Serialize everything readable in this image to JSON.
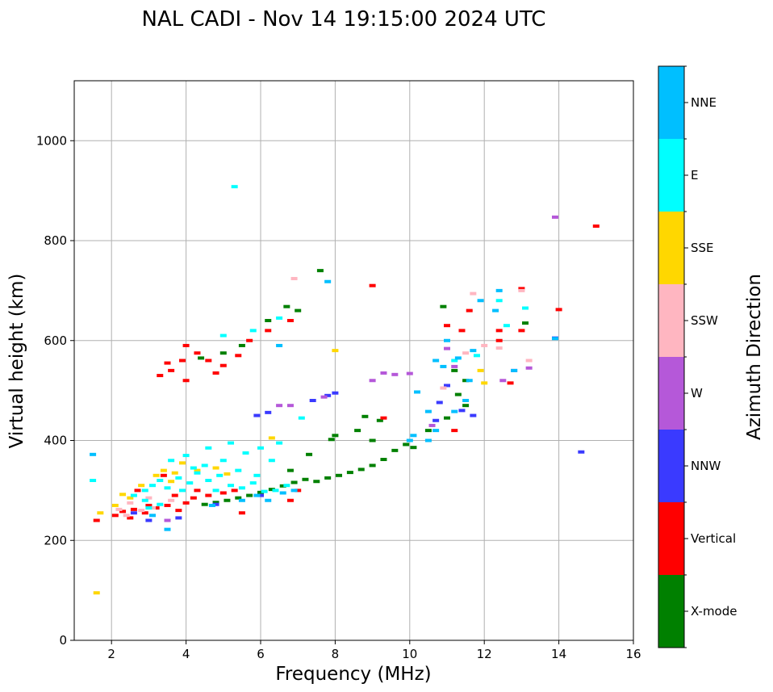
{
  "chart_data": {
    "type": "scatter",
    "title": "NAL CADI - Nov 14 19:15:00 2024 UTC",
    "xlabel": "Frequency (MHz)",
    "ylabel": "Virtual height (km)",
    "xlim": [
      1,
      16
    ],
    "ylim": [
      0,
      1120
    ],
    "xticks": [
      2,
      4,
      6,
      8,
      10,
      12,
      14,
      16
    ],
    "yticks": [
      0,
      200,
      400,
      600,
      800,
      1000
    ],
    "grid": true,
    "colorbar": {
      "label": "Azimuth Direction",
      "categories": [
        {
          "name": "X-mode",
          "color": "#008000"
        },
        {
          "name": "Vertical",
          "color": "#ff0000"
        },
        {
          "name": "NNW",
          "color": "#3a3aff"
        },
        {
          "name": "W",
          "color": "#b558d9"
        },
        {
          "name": "SSW",
          "color": "#ffb6c1"
        },
        {
          "name": "SSE",
          "color": "#ffd700"
        },
        {
          "name": "E",
          "color": "#00ffff"
        },
        {
          "name": "NNE",
          "color": "#00bfff"
        }
      ]
    },
    "series": [
      {
        "name": "X-mode",
        "points": [
          [
            4.5,
            272
          ],
          [
            4.8,
            276
          ],
          [
            5.1,
            280
          ],
          [
            5.4,
            285
          ],
          [
            5.7,
            290
          ],
          [
            6.0,
            296
          ],
          [
            6.3,
            302
          ],
          [
            6.6,
            309
          ],
          [
            6.9,
            316
          ],
          [
            7.2,
            322
          ],
          [
            7.5,
            318
          ],
          [
            7.8,
            325
          ],
          [
            8.1,
            330
          ],
          [
            8.4,
            336
          ],
          [
            8.7,
            342
          ],
          [
            9.0,
            350
          ],
          [
            9.3,
            362
          ],
          [
            9.6,
            380
          ],
          [
            9.9,
            392
          ],
          [
            10.1,
            386
          ],
          [
            10.5,
            420
          ],
          [
            11.0,
            445
          ],
          [
            11.5,
            470
          ],
          [
            9.0,
            400
          ],
          [
            8.0,
            410
          ],
          [
            8.6,
            420
          ],
          [
            8.8,
            448
          ],
          [
            9.2,
            440
          ],
          [
            7.6,
            740
          ],
          [
            6.2,
            640
          ],
          [
            6.7,
            668
          ],
          [
            7.0,
            660
          ],
          [
            5.5,
            590
          ],
          [
            5.0,
            575
          ],
          [
            4.4,
            565
          ],
          [
            11.2,
            540
          ],
          [
            11.5,
            520
          ],
          [
            13.1,
            635
          ],
          [
            10.9,
            668
          ],
          [
            11.3,
            492
          ],
          [
            7.3,
            372
          ],
          [
            6.8,
            340
          ],
          [
            7.9,
            402
          ]
        ]
      },
      {
        "name": "Vertical",
        "points": [
          [
            1.6,
            240
          ],
          [
            2.1,
            250
          ],
          [
            2.3,
            258
          ],
          [
            2.6,
            262
          ],
          [
            2.9,
            255
          ],
          [
            3.2,
            265
          ],
          [
            3.5,
            270
          ],
          [
            3.8,
            260
          ],
          [
            4.0,
            275
          ],
          [
            4.2,
            285
          ],
          [
            3.0,
            270
          ],
          [
            2.5,
            245
          ],
          [
            3.7,
            290
          ],
          [
            4.3,
            300
          ],
          [
            4.6,
            290
          ],
          [
            5.0,
            295
          ],
          [
            5.3,
            300
          ],
          [
            3.3,
            530
          ],
          [
            3.6,
            540
          ],
          [
            3.9,
            560
          ],
          [
            4.0,
            590
          ],
          [
            4.3,
            575
          ],
          [
            4.0,
            520
          ],
          [
            3.5,
            555
          ],
          [
            4.6,
            560
          ],
          [
            5.0,
            550
          ],
          [
            5.4,
            570
          ],
          [
            5.7,
            600
          ],
          [
            6.2,
            620
          ],
          [
            6.8,
            640
          ],
          [
            9.0,
            710
          ],
          [
            11.4,
            620
          ],
          [
            11.6,
            660
          ],
          [
            12.4,
            600
          ],
          [
            12.4,
            620
          ],
          [
            12.7,
            515
          ],
          [
            13.0,
            620
          ],
          [
            13.0,
            704
          ],
          [
            14.0,
            662
          ],
          [
            15.0,
            829
          ],
          [
            11.0,
            630
          ],
          [
            9.3,
            445
          ],
          [
            6.8,
            280
          ],
          [
            7.0,
            300
          ],
          [
            5.5,
            255
          ],
          [
            11.2,
            420
          ],
          [
            2.7,
            300
          ],
          [
            3.4,
            330
          ],
          [
            4.8,
            535
          ]
        ]
      },
      {
        "name": "NNW",
        "points": [
          [
            4.8,
            272
          ],
          [
            6.0,
            290
          ],
          [
            7.4,
            480
          ],
          [
            7.8,
            490
          ],
          [
            6.2,
            456
          ],
          [
            8.0,
            495
          ],
          [
            10.8,
            476
          ],
          [
            11.4,
            460
          ],
          [
            11.7,
            450
          ],
          [
            14.6,
            377
          ],
          [
            13.9,
            605
          ],
          [
            11.0,
            510
          ],
          [
            10.7,
            440
          ],
          [
            3.0,
            240
          ],
          [
            2.6,
            255
          ],
          [
            5.9,
            450
          ],
          [
            3.8,
            245
          ]
        ]
      },
      {
        "name": "W",
        "points": [
          [
            9.0,
            520
          ],
          [
            9.3,
            535
          ],
          [
            9.6,
            532
          ],
          [
            10.0,
            534
          ],
          [
            7.7,
            487
          ],
          [
            11.2,
            548
          ],
          [
            11.0,
            584
          ],
          [
            13.9,
            847
          ],
          [
            6.8,
            470
          ],
          [
            12.5,
            520
          ],
          [
            12.8,
            540
          ],
          [
            13.2,
            545
          ],
          [
            10.6,
            430
          ],
          [
            3.5,
            240
          ],
          [
            6.5,
            470
          ]
        ]
      },
      {
        "name": "SSW",
        "points": [
          [
            2.2,
            262
          ],
          [
            2.5,
            275
          ],
          [
            2.8,
            260
          ],
          [
            2.4,
            250
          ],
          [
            3.1,
            265
          ],
          [
            11.7,
            694
          ],
          [
            12.4,
            585
          ],
          [
            13.2,
            560
          ],
          [
            11.5,
            575
          ],
          [
            12.0,
            590
          ],
          [
            10.9,
            505
          ],
          [
            13.0,
            700
          ],
          [
            6.9,
            724
          ],
          [
            3.6,
            280
          ],
          [
            3.0,
            285
          ]
        ]
      },
      {
        "name": "SSE",
        "points": [
          [
            1.6,
            95
          ],
          [
            1.7,
            255
          ],
          [
            2.1,
            270
          ],
          [
            2.5,
            285
          ],
          [
            3.2,
            330
          ],
          [
            3.4,
            340
          ],
          [
            3.7,
            335
          ],
          [
            4.3,
            340
          ],
          [
            4.8,
            345
          ],
          [
            6.3,
            405
          ],
          [
            8.0,
            580
          ],
          [
            2.8,
            310
          ],
          [
            3.6,
            318
          ],
          [
            5.1,
            333
          ],
          [
            12.0,
            515
          ],
          [
            11.9,
            540
          ],
          [
            3.9,
            355
          ],
          [
            2.3,
            292
          ]
        ]
      },
      {
        "name": "E",
        "points": [
          [
            1.5,
            320
          ],
          [
            2.6,
            290
          ],
          [
            2.9,
            300
          ],
          [
            3.1,
            310
          ],
          [
            3.3,
            320
          ],
          [
            3.5,
            305
          ],
          [
            3.8,
            325
          ],
          [
            4.1,
            315
          ],
          [
            4.3,
            335
          ],
          [
            4.6,
            320
          ],
          [
            4.9,
            330
          ],
          [
            5.2,
            310
          ],
          [
            5.5,
            305
          ],
          [
            5.8,
            315
          ],
          [
            6.1,
            298
          ],
          [
            6.4,
            300
          ],
          [
            6.7,
            310
          ],
          [
            5.3,
            908
          ],
          [
            5.0,
            360
          ],
          [
            4.5,
            350
          ],
          [
            3.9,
            300
          ],
          [
            2.9,
            280
          ],
          [
            3.0,
            265
          ],
          [
            3.3,
            272
          ],
          [
            4.0,
            370
          ],
          [
            4.6,
            385
          ],
          [
            5.2,
            395
          ],
          [
            5.6,
            375
          ],
          [
            6.0,
            385
          ],
          [
            6.5,
            395
          ],
          [
            5.0,
            610
          ],
          [
            5.8,
            620
          ],
          [
            6.5,
            645
          ],
          [
            11.2,
            560
          ],
          [
            11.8,
            570
          ],
          [
            12.4,
            680
          ],
          [
            12.6,
            630
          ],
          [
            13.1,
            665
          ],
          [
            7.1,
            445
          ],
          [
            3.6,
            360
          ],
          [
            4.2,
            345
          ],
          [
            4.8,
            300
          ],
          [
            5.4,
            340
          ],
          [
            5.9,
            330
          ],
          [
            6.3,
            360
          ]
        ]
      },
      {
        "name": "NNE",
        "points": [
          [
            1.5,
            372
          ],
          [
            3.5,
            222
          ],
          [
            5.9,
            290
          ],
          [
            6.2,
            280
          ],
          [
            6.6,
            295
          ],
          [
            6.9,
            300
          ],
          [
            10.0,
            400
          ],
          [
            10.1,
            410
          ],
          [
            10.7,
            420
          ],
          [
            10.7,
            560
          ],
          [
            10.9,
            548
          ],
          [
            11.2,
            458
          ],
          [
            11.5,
            480
          ],
          [
            11.6,
            520
          ],
          [
            11.3,
            565
          ],
          [
            11.0,
            600
          ],
          [
            11.9,
            680
          ],
          [
            12.4,
            700
          ],
          [
            7.8,
            718
          ],
          [
            13.9,
            604
          ],
          [
            10.5,
            400
          ],
          [
            6.5,
            590
          ],
          [
            10.2,
            497
          ],
          [
            11.7,
            580
          ],
          [
            12.3,
            660
          ],
          [
            12.8,
            540
          ],
          [
            3.1,
            250
          ],
          [
            4.7,
            270
          ],
          [
            5.5,
            280
          ],
          [
            10.5,
            458
          ]
        ]
      }
    ]
  }
}
